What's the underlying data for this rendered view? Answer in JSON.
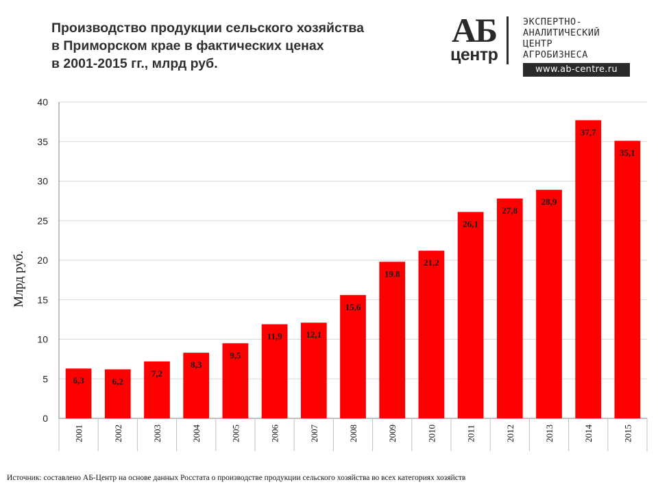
{
  "title_lines": [
    "Производство продукции сельского хозяйства",
    "в Приморском крае в фактических ценах",
    "в 2001-2015 гг., млрд руб."
  ],
  "logo": {
    "mark_top": "АБ",
    "mark_bottom": "центр",
    "text_lines": [
      "ЭКСПЕРТНО-",
      "АНАЛИТИЧЕСКИЙ",
      "ЦЕНТР",
      "АГРОБИЗНЕСА"
    ],
    "url": "www.ab-centre.ru"
  },
  "source": "Источник: составлено АБ-Центр на основе данных Росстата о производстве продукции сельского хозяйства во всех категориях хозяйств",
  "colors": {
    "bar": "#ff0000",
    "grid": "#d9d9d9",
    "axis": "#7f7f7f",
    "label": "#1a1a1a"
  },
  "chart_data": {
    "type": "bar",
    "title": "Производство продукции сельского хозяйства в Приморском крае в фактических ценах в 2001-2015 гг., млрд руб.",
    "ylabel": "Млрд руб.",
    "xlabel": "",
    "categories": [
      "2001",
      "2002",
      "2003",
      "2004",
      "2005",
      "2006",
      "2007",
      "2008",
      "2009",
      "2010",
      "2011",
      "2012",
      "2013",
      "2014",
      "2015"
    ],
    "values": [
      6.3,
      6.2,
      7.2,
      8.3,
      9.5,
      11.9,
      12.1,
      15.6,
      19.8,
      21.2,
      26.1,
      27.8,
      28.9,
      37.7,
      35.1
    ],
    "value_labels": [
      "6,3",
      "6,2",
      "7,2",
      "8,3",
      "9,5",
      "11,9",
      "12,1",
      "15,6",
      "19.8",
      "21,2",
      "26,1",
      "27,8",
      "28,9",
      "37,7",
      "35,1"
    ],
    "yticks": [
      "0",
      "5",
      "10",
      "15",
      "20",
      "25",
      "30",
      "35",
      "40"
    ],
    "ylim": [
      0,
      40
    ],
    "grid": true,
    "legend": "none"
  }
}
